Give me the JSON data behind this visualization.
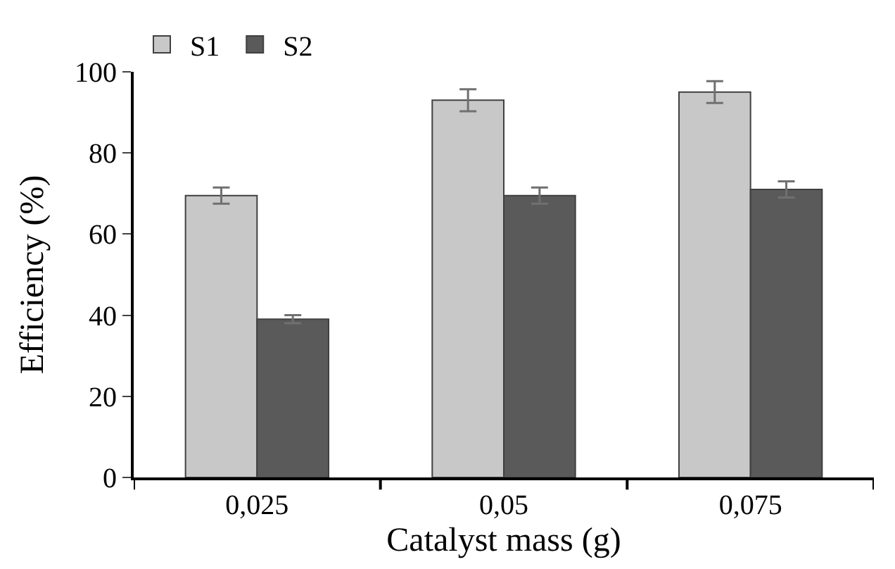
{
  "chart_data": {
    "type": "bar",
    "xlabel": "Catalyst mass (g)",
    "ylabel": "Efficiency (%)",
    "categories": [
      "0,025",
      "0,05",
      "0,075"
    ],
    "series": [
      {
        "name": "S1",
        "color": "#c8c8c8",
        "values": [
          69.5,
          93,
          95
        ],
        "errors": [
          2,
          2.7,
          2.7
        ]
      },
      {
        "name": "S2",
        "color": "#5a5a5a",
        "values": [
          39,
          69.5,
          71
        ],
        "errors": [
          1,
          2,
          2
        ]
      }
    ],
    "ylim": [
      0,
      100
    ],
    "yticks": [
      0,
      20,
      40,
      60,
      80,
      100
    ],
    "grid": false,
    "legend": "top left"
  }
}
